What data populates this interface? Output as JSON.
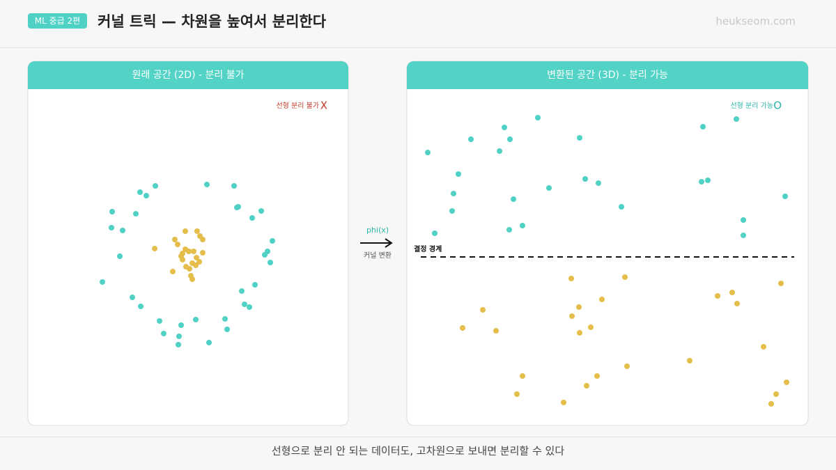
{
  "header": {
    "badge": "ML 중급 2편",
    "title": "커널 트릭 — 차원을 높여서 분리한다",
    "site": "heukseom.com"
  },
  "transform": {
    "label": "phi(x)",
    "caption": "커널 변환"
  },
  "chart_data": [
    {
      "type": "scatter",
      "title": "원래 공간 (2D) - 분리 불가",
      "annotation": "선형 분리 불가",
      "annotation_mark": "X",
      "xlim": [
        0,
        460
      ],
      "ylim": [
        0,
        482
      ],
      "series": [
        {
          "color": "#4fd1c5",
          "x": [
            183,
            257,
            296,
            161,
            170,
            121,
            155,
            302,
            300,
            335,
            322,
            120,
            136,
            351,
            344,
            340,
            348,
            132,
            107,
            326,
            307,
            150,
            162,
            311,
            318,
            189,
            220,
            241,
            283,
            286,
            195,
            217,
            260,
            216
          ],
          "y": [
            343,
            345,
            343,
            334,
            329,
            306,
            303,
            313,
            312,
            307,
            297,
            283,
            279,
            264,
            249,
            244,
            233,
            242,
            205,
            201,
            192,
            183,
            170,
            173,
            169,
            149,
            143,
            151,
            152,
            137,
            131,
            127,
            118,
            115
          ]
        },
        {
          "color": "#e5bd4a",
          "x": [
            226,
            243,
            247,
            251,
            211,
            215,
            182,
            226,
            231,
            238,
            251,
            222,
            242,
            246,
            222,
            236,
            227,
            232,
            208,
            234,
            236,
            220,
            241
          ],
          "y": [
            278,
            278,
            271,
            266,
            266,
            259,
            253,
            252,
            249,
            249,
            247,
            246,
            240,
            234,
            237,
            232,
            227,
            224,
            220,
            214,
            209,
            242,
            229
          ]
        }
      ]
    },
    {
      "type": "scatter",
      "title": "변환된 공간 (3D) - 분리 가능",
      "annotation": "선형 분리 가능",
      "annotation_mark": "O",
      "boundary_label": "결정 경계",
      "boundary": 241,
      "xlim": [
        0,
        576
      ],
      "ylim": [
        0,
        482
      ],
      "series": [
        {
          "color": "#4fd1c5",
          "x": [
            30,
            92,
            140,
            148,
            188,
            133,
            248,
            74,
            67,
            65,
            40,
            153,
            204,
            256,
            275,
            308,
            147,
            166,
            425,
            473,
            423,
            432,
            543,
            483,
            483
          ],
          "y": [
            391,
            410,
            427,
            410,
            441,
            393,
            412,
            360,
            332,
            307,
            275,
            324,
            340,
            353,
            347,
            313,
            280,
            286,
            428,
            439,
            349,
            351,
            328,
            294,
            272
          ]
        },
        {
          "color": "#e5bd4a",
          "x": [
            236,
            313,
            109,
            247,
            280,
            237,
            80,
            128,
            264,
            248,
            446,
            467,
            474,
            537,
            512,
            406,
            316,
            166,
            273,
            258,
            158,
            225,
            545,
            530,
            523
          ],
          "y": [
            210,
            212,
            165,
            169,
            180,
            156,
            139,
            135,
            140,
            132,
            185,
            190,
            174,
            203,
            112,
            92,
            84,
            70,
            70,
            56,
            44,
            32,
            61,
            44,
            30
          ]
        }
      ]
    }
  ],
  "footer": {
    "caption": "선형으로 분리 안 되는 데이터도, 고차원으로 보내면 분리할 수 있다"
  }
}
